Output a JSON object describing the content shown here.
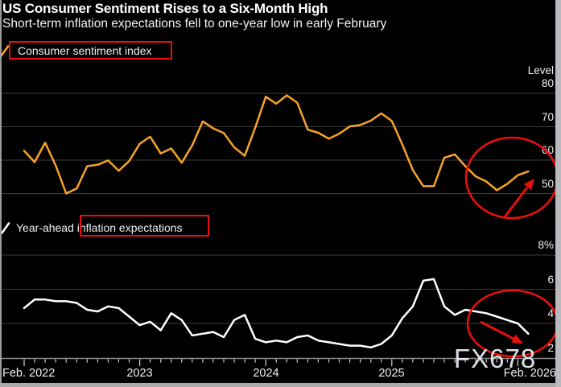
{
  "header": {
    "title": "US Consumer Sentiment Rises to a Six-Month High",
    "subtitle": "Short-term inflation expectations fell to one-year low in early February"
  },
  "legends": [
    {
      "label": "Consumer sentiment index",
      "marker_color": "#F7A329"
    },
    {
      "label": "Year-ahead inflation expectations",
      "marker_color": "#FFFFFF"
    }
  ],
  "watermark": "FX678",
  "colors": {
    "background": "#000000",
    "sentiment_line": "#F7A329",
    "inflation_line": "#FFFFFF",
    "gridline": "#3C3C3C",
    "axis_line": "#8C8C8C",
    "tick": "#D4D4D4",
    "annotation_red": "#E8100C",
    "text": "#F2F2F2",
    "watermark_text": "#E8EDF3",
    "scrollbar": "#B9BABD"
  },
  "xaxis": {
    "labels": [
      "Feb. 2022",
      "2023",
      "2024",
      "2025",
      "Feb. 2026"
    ],
    "frequency": "monthly",
    "range": [
      "Feb 2022",
      "Feb 2026"
    ]
  },
  "chart_data": [
    {
      "type": "line",
      "title": "Consumer sentiment index",
      "ylabel": "Level",
      "yticks": [
        {
          "label": "80",
          "value": 80
        },
        {
          "label": "70",
          "value": 70
        },
        {
          "label": "60",
          "value": 60
        },
        {
          "label": "50",
          "value": 50
        }
      ],
      "ylim": [
        46,
        84
      ],
      "grid": true,
      "legend_position": "top-left",
      "x_months": "Feb 2022 to Feb 2026, monthly",
      "series": [
        {
          "name": "Consumer sentiment index",
          "color": "#F7A329",
          "values": [
            62.8,
            59.4,
            65.2,
            58.4,
            50.0,
            51.5,
            58.2,
            58.6,
            59.9,
            56.8,
            59.7,
            64.9,
            67.0,
            62.0,
            63.5,
            59.2,
            64.4,
            71.6,
            69.5,
            68.1,
            63.8,
            61.3,
            69.7,
            79.0,
            76.9,
            79.4,
            77.2,
            69.1,
            68.2,
            66.4,
            67.9,
            70.1,
            70.5,
            71.8,
            74.0,
            71.7,
            64.7,
            57.0,
            52.2,
            52.2,
            60.7,
            61.7,
            58.2,
            55.1,
            53.6,
            51.0,
            52.9,
            55.5,
            56.6
          ]
        }
      ],
      "annotations": [
        {
          "type": "ellipse-highlight",
          "note": "circles the late-2025 trough and rebound to a six-month high"
        },
        {
          "type": "arrow",
          "direction": "up-right",
          "points_to": "Feb 2026 value"
        }
      ]
    },
    {
      "type": "line",
      "title": "Year-ahead inflation expectations",
      "ylabel": "",
      "yticks": [
        {
          "label": "8%",
          "value": 8
        },
        {
          "label": "6",
          "value": 6
        },
        {
          "label": "4",
          "value": 4
        },
        {
          "label": "2",
          "value": 2
        }
      ],
      "ylim": [
        2,
        8.4
      ],
      "grid": true,
      "legend_position": "top-left",
      "x_months": "Feb 2022 to Feb 2026, monthly",
      "series": [
        {
          "name": "Year-ahead inflation expectations",
          "color": "#FFFFFF",
          "values": [
            4.9,
            5.4,
            5.4,
            5.3,
            5.3,
            5.2,
            4.8,
            4.7,
            5.0,
            4.9,
            4.4,
            3.9,
            4.1,
            3.6,
            4.6,
            4.2,
            3.3,
            3.4,
            3.5,
            3.2,
            4.2,
            4.5,
            3.1,
            2.9,
            3.0,
            2.9,
            3.2,
            3.3,
            3.0,
            2.9,
            2.8,
            2.7,
            2.7,
            2.6,
            2.8,
            3.3,
            4.3,
            5.0,
            6.5,
            6.6,
            5.0,
            4.5,
            4.8,
            4.7,
            4.6,
            4.4,
            4.2,
            4.0,
            3.4
          ]
        }
      ],
      "annotations": [
        {
          "type": "ellipse-highlight",
          "note": "circles the decline into early February"
        },
        {
          "type": "arrow",
          "direction": "down-right",
          "points_to": "Feb 2026 one-year low"
        }
      ]
    }
  ]
}
